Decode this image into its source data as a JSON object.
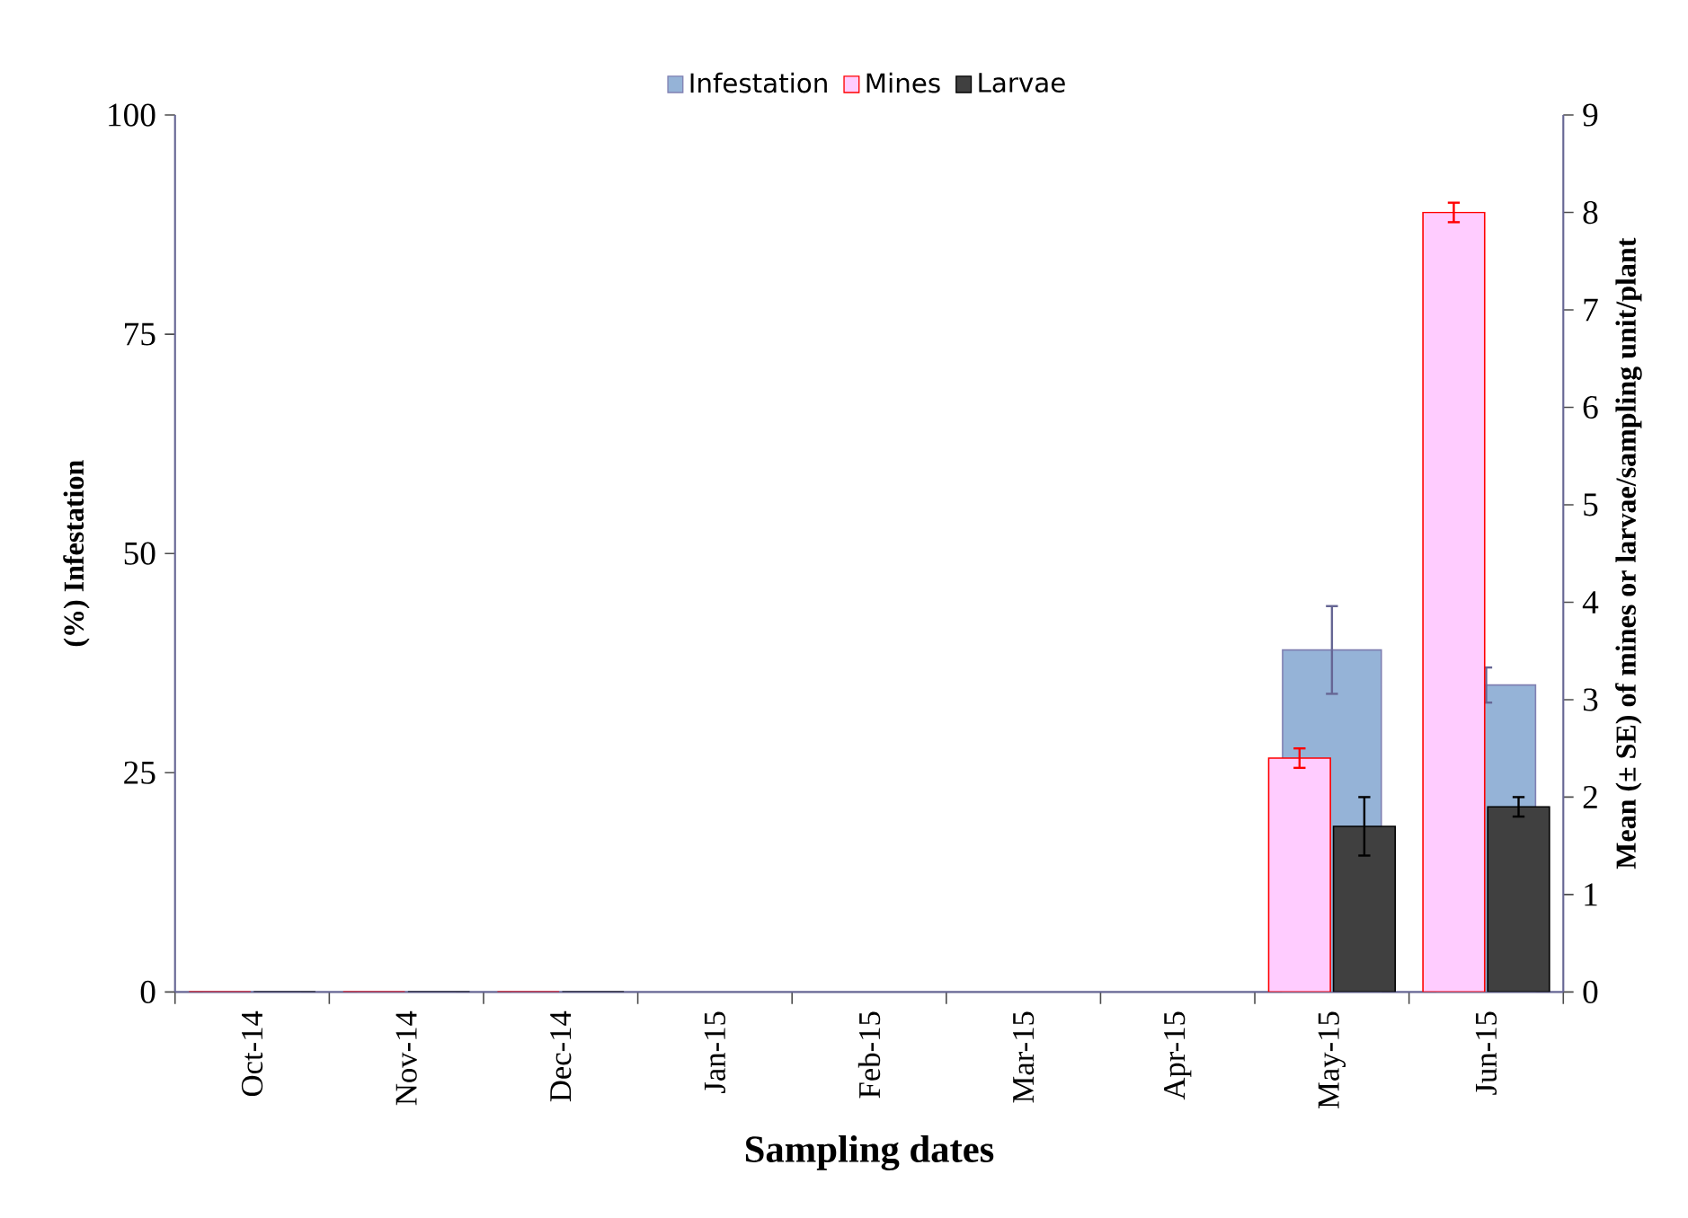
{
  "chart_data": {
    "type": "bar",
    "xlabel": "Sampling dates",
    "ylabel": "(%) Infestation",
    "y2label": "Mean (± SE) of mines or larvae/sampling unit/plant",
    "categories": [
      "Oct-14",
      "Nov-14",
      "Dec-14",
      "Jan-15",
      "Feb-15",
      "Mar-15",
      "Apr-15",
      "May-15",
      "Jun-15"
    ],
    "series": [
      {
        "name": "Infestation",
        "color": "#95b3d7",
        "values": [
          0,
          0,
          0,
          null,
          null,
          null,
          null,
          39,
          35
        ],
        "errors": [
          null,
          null,
          null,
          null,
          null,
          null,
          null,
          5,
          2
        ]
      },
      {
        "name": "Mines",
        "color": "#ffccff",
        "axis": "y2",
        "values": [
          0,
          0,
          0,
          null,
          null,
          null,
          null,
          2.4,
          8.0
        ],
        "errors": [
          null,
          null,
          null,
          null,
          null,
          null,
          null,
          0.1,
          0.1
        ]
      },
      {
        "name": "Larvae",
        "color": "#404040",
        "axis": "y2",
        "values": [
          0,
          0,
          0,
          null,
          null,
          null,
          null,
          1.7,
          1.9
        ],
        "errors": [
          null,
          null,
          null,
          null,
          null,
          null,
          null,
          0.3,
          0.1
        ]
      }
    ],
    "ylim": [
      0,
      100
    ],
    "yticks": [
      0,
      25,
      50,
      75,
      100
    ],
    "y2lim": [
      0,
      9
    ],
    "y2ticks": [
      0,
      1,
      2,
      3,
      4,
      5,
      6,
      7,
      8,
      9
    ],
    "legend": "top",
    "grid": false
  }
}
